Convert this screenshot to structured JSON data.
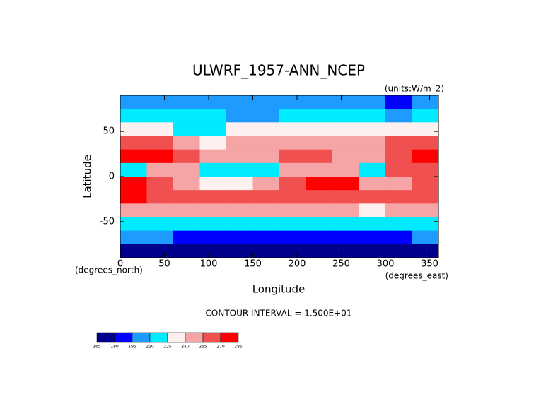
{
  "chart_data": {
    "type": "heatmap",
    "title": "ULWRF_1957-ANN_NCEP",
    "subtitle": "(units:W/m¯2)",
    "xlabel": "Longitude",
    "ylabel": "Latitude",
    "xunits": "(degrees_east)",
    "yunits": "(degrees_north)",
    "note": "CONTOUR INTERVAL = 1.500E+01",
    "xlim": [
      0,
      360
    ],
    "ylim": [
      -90,
      90
    ],
    "xticks": [
      0,
      50,
      100,
      150,
      200,
      250,
      300,
      350
    ],
    "yticks": [
      -50,
      0,
      50
    ],
    "x": [
      15,
      45,
      75,
      105,
      135,
      165,
      195,
      225,
      255,
      285,
      315,
      345
    ],
    "y": [
      82.5,
      67.5,
      52.5,
      37.5,
      22.5,
      7.5,
      -7.5,
      -22.5,
      -37.5,
      -52.5,
      -67.5,
      -82.5
    ],
    "values": [
      [
        200,
        200,
        195,
        200,
        200,
        200,
        200,
        200,
        200,
        195,
        190,
        200
      ],
      [
        210,
        215,
        210,
        210,
        205,
        205,
        210,
        210,
        210,
        210,
        205,
        210
      ],
      [
        225,
        225,
        215,
        220,
        225,
        225,
        230,
        230,
        230,
        225,
        225,
        225
      ],
      [
        260,
        255,
        240,
        230,
        240,
        245,
        245,
        240,
        245,
        240,
        255,
        260
      ],
      [
        270,
        270,
        255,
        245,
        240,
        250,
        255,
        255,
        250,
        245,
        265,
        270
      ],
      [
        215,
        250,
        245,
        215,
        210,
        215,
        245,
        250,
        250,
        215,
        255,
        260
      ],
      [
        270,
        255,
        250,
        230,
        235,
        245,
        265,
        270,
        270,
        240,
        250,
        255
      ],
      [
        270,
        265,
        265,
        260,
        265,
        260,
        255,
        255,
        265,
        260,
        255,
        265
      ],
      [
        245,
        245,
        245,
        245,
        245,
        245,
        245,
        240,
        240,
        235,
        240,
        240
      ],
      [
        215,
        215,
        210,
        210,
        210,
        210,
        215,
        215,
        215,
        210,
        210,
        215
      ],
      [
        195,
        195,
        190,
        190,
        190,
        190,
        190,
        190,
        190,
        190,
        190,
        195
      ],
      [
        175,
        170,
        170,
        170,
        170,
        170,
        170,
        175,
        175,
        175,
        175,
        175
      ]
    ],
    "levels": [
      165,
      180,
      195,
      210,
      225,
      240,
      255,
      270,
      285
    ],
    "colors": [
      "#00008c",
      "#0000ff",
      "#1e9bff",
      "#00ebff",
      "#fff0f0",
      "#f5a5a5",
      "#f05050",
      "#ff0000"
    ]
  }
}
